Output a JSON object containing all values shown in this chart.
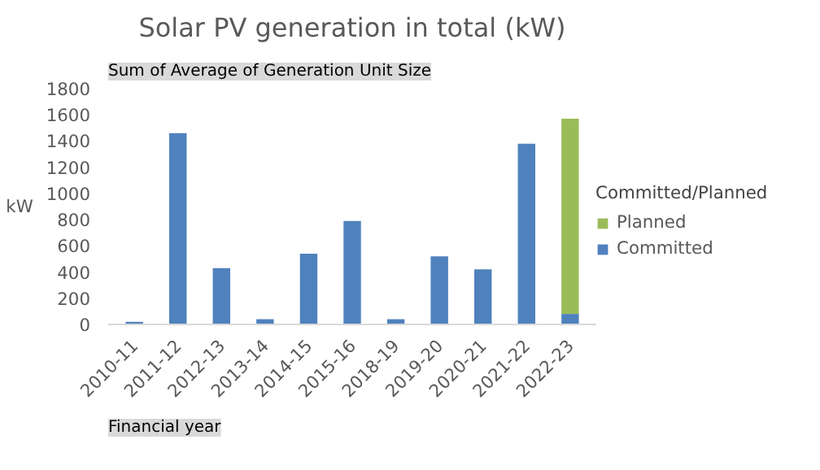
{
  "chart_data": {
    "type": "bar",
    "title": "Solar PV generation in total (kW)",
    "ylabel": "kW",
    "legend_title": "Committed/Planned",
    "annotations": [
      "Sum of Average of Generation Unit Size",
      "Financial year"
    ],
    "categories": [
      "2010-11",
      "2011-12",
      "2012-13",
      "2013-14",
      "2014-15",
      "2015-16",
      "2018-19",
      "2019-20",
      "2020-21",
      "2021-22",
      "2022-23"
    ],
    "stacked": true,
    "series": [
      {
        "name": "Committed",
        "color": "#4f81bd",
        "values": [
          20,
          1460,
          430,
          40,
          540,
          790,
          40,
          520,
          420,
          1380,
          80
        ]
      },
      {
        "name": "Planned",
        "color": "#9bbb59",
        "values": [
          null,
          null,
          null,
          null,
          null,
          null,
          null,
          null,
          null,
          null,
          1490
        ]
      }
    ],
    "ylim": [
      0,
      1800
    ],
    "yticks": [
      0,
      200,
      400,
      600,
      800,
      1000,
      1200,
      1400,
      1600,
      1800
    ],
    "grid": false,
    "legend": "right"
  }
}
